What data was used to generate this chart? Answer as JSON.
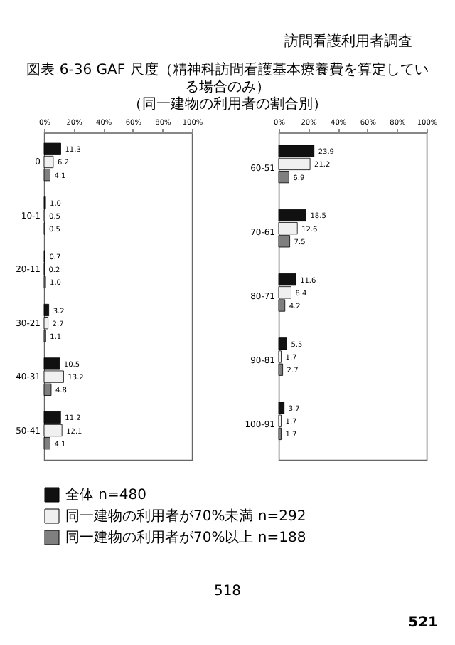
{
  "chart_data": [
    {
      "type": "bar",
      "orientation": "horizontal",
      "title": "図表 6-36 GAF 尺度（精神科訪問看護基本療養費を算定している場合のみ）",
      "subtitle": "（同一建物の利用者の割合別）",
      "annotations": [
        "訪問看護利用者調査",
        "518",
        "521"
      ],
      "categories": [
        "0",
        "10-1",
        "20-11",
        "30-21",
        "40-31",
        "50-41"
      ],
      "series": [
        {
          "name": "全体 n=480",
          "color": "#111111",
          "values": [
            11.3,
            1.0,
            0.7,
            3.2,
            10.5,
            11.2
          ],
          "value_labels": [
            "11.3",
            "1.0",
            "0.7",
            "3.2",
            "10.5",
            "11.2"
          ]
        },
        {
          "name": "同一建物の利用者が70%未満 n=292",
          "color": "#f0f0f0",
          "values": [
            6.2,
            0.5,
            0.2,
            2.7,
            13.2,
            12.1
          ],
          "value_labels": [
            "6.2",
            "0.5",
            "0.2",
            "2.7",
            "13.2",
            "12.1"
          ]
        },
        {
          "name": "同一建物の利用者が70%以上 n=188",
          "color": "#7f7f7f",
          "values": [
            4.1,
            0.5,
            1.0,
            1.1,
            4.8,
            4.1
          ],
          "value_labels": [
            "4.1",
            "0.5",
            "1.0",
            "1.1",
            "4.8",
            "4.1"
          ]
        }
      ],
      "xlim": [
        0,
        100
      ],
      "xticks": [
        {
          "value": 0,
          "label": "0%"
        },
        {
          "value": 20,
          "label": "20%"
        },
        {
          "value": 40,
          "label": "40%"
        },
        {
          "value": 60,
          "label": "60%"
        },
        {
          "value": 80,
          "label": "80%"
        },
        {
          "value": 100,
          "label": "100%"
        }
      ],
      "legend": "bottom"
    },
    {
      "type": "bar",
      "orientation": "horizontal",
      "categories": [
        "60-51",
        "70-61",
        "80-71",
        "90-81",
        "100-91"
      ],
      "series": [
        {
          "name": "全体 n=480",
          "color": "#111111",
          "values": [
            23.9,
            18.5,
            11.6,
            5.5,
            3.7
          ],
          "value_labels": [
            "23.9",
            "18.5",
            "11.6",
            "5.5",
            "3.7"
          ]
        },
        {
          "name": "同一建物の利用者が70%未満 n=292",
          "color": "#f0f0f0",
          "values": [
            21.2,
            12.6,
            8.4,
            1.7,
            1.7
          ],
          "value_labels": [
            "21.2",
            "12.6",
            "8.4",
            "1.7",
            "1.7"
          ]
        },
        {
          "name": "同一建物の利用者が70%以上 n=188",
          "color": "#7f7f7f",
          "values": [
            6.9,
            7.5,
            4.2,
            2.7,
            1.7
          ],
          "value_labels": [
            "6.9",
            "7.5",
            "4.2",
            "2.7",
            "1.7"
          ]
        }
      ],
      "xlim": [
        0,
        100
      ],
      "xticks": [
        {
          "value": 0,
          "label": "0%"
        },
        {
          "value": 20,
          "label": "20%"
        },
        {
          "value": 40,
          "label": "40%"
        },
        {
          "value": 60,
          "label": "60%"
        },
        {
          "value": 80,
          "label": "80%"
        },
        {
          "value": 100,
          "label": "100%"
        }
      ],
      "legend": "bottom"
    }
  ]
}
